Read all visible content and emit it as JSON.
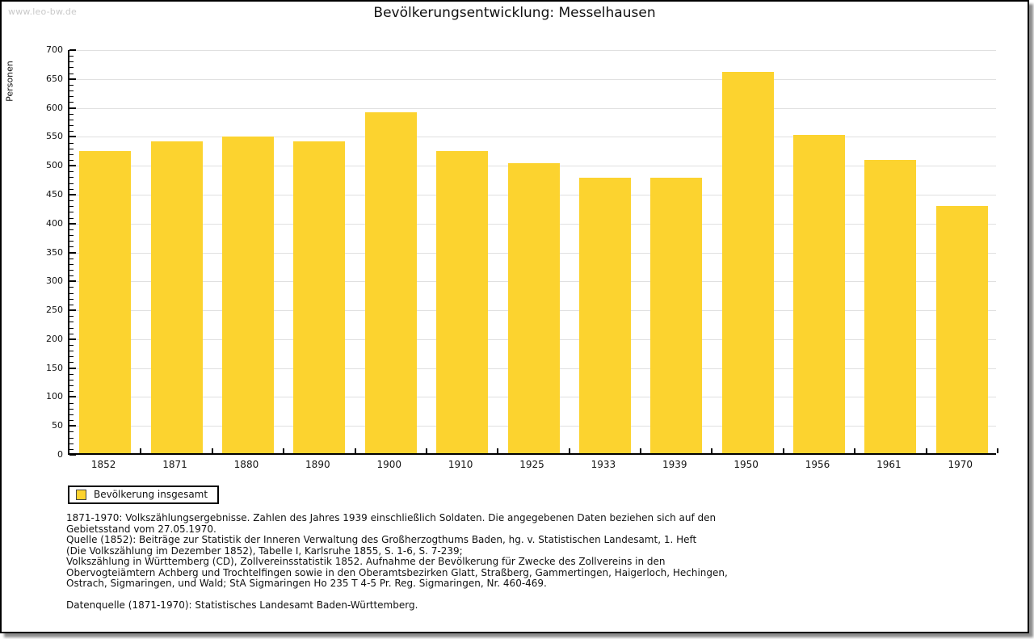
{
  "page": {
    "watermark": "www.leo-bw.de",
    "title": "Bevölkerungsentwicklung: Messelhausen"
  },
  "chart_data": {
    "type": "bar",
    "title": "Bevölkerungsentwicklung: Messelhausen",
    "xlabel": "",
    "ylabel": "Personen",
    "categories": [
      "1852",
      "1871",
      "1880",
      "1890",
      "1900",
      "1910",
      "1925",
      "1933",
      "1939",
      "1950",
      "1956",
      "1961",
      "1970"
    ],
    "values": [
      523,
      540,
      548,
      540,
      589,
      523,
      502,
      477,
      477,
      660,
      550,
      507,
      428
    ],
    "ylim": [
      0,
      700
    ],
    "ytick_step": 50,
    "ytick_minor_step": 10,
    "grid": true,
    "bar_color": "#fcd32f",
    "legend_position": "bottom-left"
  },
  "legend": {
    "label": "Bevölkerung insgesamt",
    "swatch_color": "#fcd32f"
  },
  "footer": {
    "lines": [
      "1871-1970: Volkszählungsergebnisse. Zahlen des Jahres 1939 einschließlich Soldaten. Die angegebenen Daten beziehen sich auf den",
      "Gebietsstand vom 27.05.1970.",
      "Quelle (1852): Beiträge zur Statistik der Inneren Verwaltung des Großherzogthums Baden, hg. v. Statistischen Landesamt, 1. Heft",
      "(Die Volkszählung im Dezember 1852), Tabelle I, Karlsruhe 1855, S. 1-6, S. 7-239;",
      "Volkszählung in Württemberg (CD), Zollvereinsstatistik 1852. Aufnahme der Bevölkerung für Zwecke des Zollvereins in den",
      "Obervogteiämtern Achberg und Trochtelfingen sowie in den Oberamtsbezirken Glatt, Straßberg, Gammertingen, Haigerloch, Hechingen,",
      "Ostrach, Sigmaringen, und Wald; StA Sigmaringen Ho 235 T 4-5 Pr. Reg. Sigmaringen, Nr. 460-469."
    ],
    "datasource": "Datenquelle (1871-1970): Statistisches Landesamt Baden-Württemberg."
  }
}
